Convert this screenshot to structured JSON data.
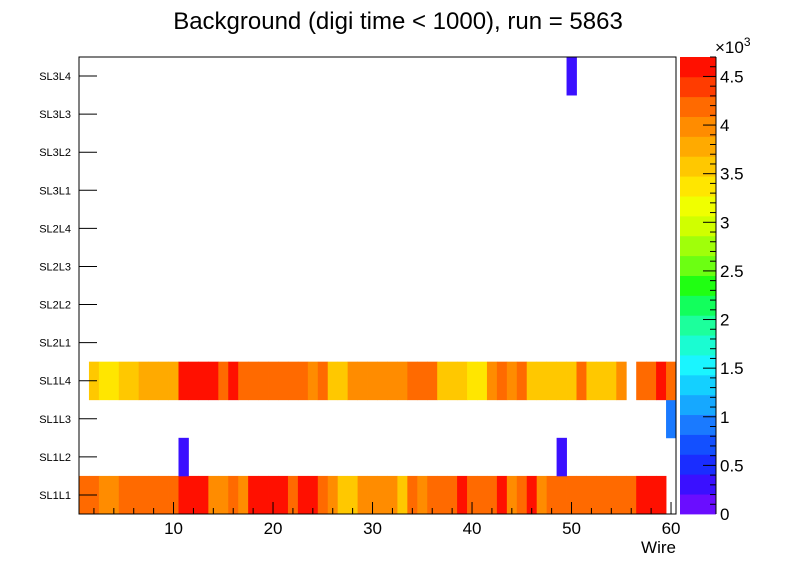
{
  "chart_data": {
    "type": "heatmap",
    "title": "Background (digi time < 1000), run = 5863",
    "xlabel": "Wire",
    "ylabel": "",
    "xlim": [
      0.5,
      60.5
    ],
    "x_ticks": [
      "10",
      "20",
      "30",
      "40",
      "50",
      "60"
    ],
    "y_categories": [
      "SL1L1",
      "SL1L2",
      "SL1L3",
      "SL1L4",
      "SL2L1",
      "SL2L2",
      "SL2L3",
      "SL2L4",
      "SL3L1",
      "SL3L2",
      "SL3L3",
      "SL3L4"
    ],
    "z_range": [
      0,
      4700
    ],
    "z_multiplier_label": "×10",
    "z_multiplier_exponent": "3",
    "z_ticks": [
      "0",
      "0.5",
      "1",
      "1.5",
      "2",
      "2.5",
      "3",
      "3.5",
      "4",
      "4.5"
    ],
    "z_tick_values": [
      0,
      500,
      1000,
      1500,
      2000,
      2500,
      3000,
      3500,
      4000,
      4500
    ],
    "palette": [
      "#6a0dff",
      "#3a10ff",
      "#1a2dff",
      "#1350ff",
      "#1a7aff",
      "#16a8ff",
      "#14d0ff",
      "#1af5ff",
      "#1afcd2",
      "#1cff9c",
      "#12ff5c",
      "#20ff12",
      "#6cff12",
      "#a0ff0a",
      "#d0ff00",
      "#f0ff00",
      "#ffe600",
      "#ffc800",
      "#ffaa00",
      "#ff8c00",
      "#ff6a00",
      "#ff3c00",
      "#ff1000"
    ],
    "series": [
      {
        "name": "SL1L1",
        "values": [
          4200,
          4200,
          4000,
          4000,
          4200,
          4200,
          4200,
          4200,
          4200,
          4200,
          4500,
          4500,
          4500,
          4000,
          3900,
          4200,
          4000,
          4500,
          4500,
          4500,
          4500,
          4200,
          4500,
          4500,
          4200,
          3900,
          3500,
          3500,
          3900,
          3900,
          3900,
          3900,
          3600,
          4200,
          3900,
          4200,
          4200,
          4200,
          4500,
          4200,
          4200,
          4200,
          4500,
          3900,
          4200,
          4500,
          3900,
          4200,
          4200,
          4200,
          4200,
          4200,
          4200,
          4200,
          4200,
          4200,
          4700,
          4700,
          4700,
          0
        ]
      },
      {
        "name": "SL1L2",
        "values": [
          0,
          0,
          0,
          0,
          0,
          0,
          0,
          0,
          0,
          0,
          350,
          0,
          0,
          0,
          0,
          0,
          0,
          0,
          0,
          0,
          0,
          0,
          0,
          0,
          0,
          0,
          0,
          0,
          0,
          0,
          0,
          0,
          0,
          0,
          0,
          0,
          0,
          0,
          0,
          0,
          0,
          0,
          0,
          0,
          0,
          0,
          0,
          0,
          350,
          0,
          0,
          0,
          0,
          0,
          0,
          0,
          0,
          0,
          0,
          0
        ]
      },
      {
        "name": "SL1L3",
        "values": [
          0,
          0,
          0,
          0,
          0,
          0,
          0,
          0,
          0,
          0,
          0,
          0,
          0,
          0,
          0,
          0,
          0,
          0,
          0,
          0,
          0,
          0,
          0,
          0,
          0,
          0,
          0,
          0,
          0,
          0,
          0,
          0,
          0,
          0,
          0,
          0,
          0,
          0,
          0,
          0,
          0,
          0,
          0,
          0,
          0,
          0,
          0,
          0,
          0,
          0,
          0,
          0,
          0,
          0,
          0,
          0,
          0,
          0,
          0,
          900
        ]
      },
      {
        "name": "SL1L4",
        "values": [
          0,
          3600,
          3300,
          3300,
          3600,
          3600,
          3800,
          3800,
          3800,
          3800,
          4500,
          4700,
          4700,
          4500,
          4200,
          4500,
          4200,
          4200,
          4200,
          4200,
          4200,
          4200,
          4200,
          3900,
          4200,
          3600,
          3600,
          3900,
          3900,
          3900,
          3900,
          3900,
          3900,
          4200,
          4200,
          4200,
          3600,
          3600,
          3600,
          3300,
          3300,
          3900,
          4200,
          3900,
          4200,
          3600,
          3600,
          3600,
          3600,
          3600,
          4200,
          3600,
          3600,
          3600,
          3900,
          0,
          4200,
          4200,
          4500,
          4200
        ]
      },
      {
        "name": "SL2L1",
        "values": [
          0,
          0,
          0,
          0,
          0,
          0,
          0,
          0,
          0,
          0,
          0,
          0,
          0,
          0,
          0,
          0,
          0,
          0,
          0,
          0,
          0,
          0,
          0,
          0,
          0,
          0,
          0,
          0,
          0,
          0,
          0,
          0,
          0,
          0,
          0,
          0,
          0,
          0,
          0,
          0,
          0,
          0,
          0,
          0,
          0,
          0,
          0,
          0,
          0,
          0,
          0,
          0,
          0,
          0,
          0,
          0,
          0,
          0,
          0,
          0
        ]
      },
      {
        "name": "SL2L2",
        "values": [
          0,
          0,
          0,
          0,
          0,
          0,
          0,
          0,
          0,
          0,
          0,
          0,
          0,
          0,
          0,
          0,
          0,
          0,
          0,
          0,
          0,
          0,
          0,
          0,
          0,
          0,
          0,
          0,
          0,
          0,
          0,
          0,
          0,
          0,
          0,
          0,
          0,
          0,
          0,
          0,
          0,
          0,
          0,
          0,
          0,
          0,
          0,
          0,
          0,
          0,
          0,
          0,
          0,
          0,
          0,
          0,
          0,
          0,
          0,
          0
        ]
      },
      {
        "name": "SL2L3",
        "values": [
          0,
          0,
          0,
          0,
          0,
          0,
          0,
          0,
          0,
          0,
          0,
          0,
          0,
          0,
          0,
          0,
          0,
          0,
          0,
          0,
          0,
          0,
          0,
          0,
          0,
          0,
          0,
          0,
          0,
          0,
          0,
          0,
          0,
          0,
          0,
          0,
          0,
          0,
          0,
          0,
          0,
          0,
          0,
          0,
          0,
          0,
          0,
          0,
          0,
          0,
          0,
          0,
          0,
          0,
          0,
          0,
          0,
          0,
          0,
          0
        ]
      },
      {
        "name": "SL2L4",
        "values": [
          0,
          0,
          0,
          0,
          0,
          0,
          0,
          0,
          0,
          0,
          0,
          0,
          0,
          0,
          0,
          0,
          0,
          0,
          0,
          0,
          0,
          0,
          0,
          0,
          0,
          0,
          0,
          0,
          0,
          0,
          0,
          0,
          0,
          0,
          0,
          0,
          0,
          0,
          0,
          0,
          0,
          0,
          0,
          0,
          0,
          0,
          0,
          0,
          0,
          0,
          0,
          0,
          0,
          0,
          0,
          0,
          0,
          0,
          0,
          0
        ]
      },
      {
        "name": "SL3L1",
        "values": [
          0,
          0,
          0,
          0,
          0,
          0,
          0,
          0,
          0,
          0,
          0,
          0,
          0,
          0,
          0,
          0,
          0,
          0,
          0,
          0,
          0,
          0,
          0,
          0,
          0,
          0,
          0,
          0,
          0,
          0,
          0,
          0,
          0,
          0,
          0,
          0,
          0,
          0,
          0,
          0,
          0,
          0,
          0,
          0,
          0,
          0,
          0,
          0,
          0,
          0,
          0,
          0,
          0,
          0,
          0,
          0,
          0,
          0,
          0,
          0
        ]
      },
      {
        "name": "SL3L2",
        "values": [
          0,
          0,
          0,
          0,
          0,
          0,
          0,
          0,
          0,
          0,
          0,
          0,
          0,
          0,
          0,
          0,
          0,
          0,
          0,
          0,
          0,
          0,
          0,
          0,
          0,
          0,
          0,
          0,
          0,
          0,
          0,
          0,
          0,
          0,
          0,
          0,
          0,
          0,
          0,
          0,
          0,
          0,
          0,
          0,
          0,
          0,
          0,
          0,
          0,
          0,
          0,
          0,
          0,
          0,
          0,
          0,
          0,
          0,
          0,
          0
        ]
      },
      {
        "name": "SL3L3",
        "values": [
          0,
          0,
          0,
          0,
          0,
          0,
          0,
          0,
          0,
          0,
          0,
          0,
          0,
          0,
          0,
          0,
          0,
          0,
          0,
          0,
          0,
          0,
          0,
          0,
          0,
          0,
          0,
          0,
          0,
          0,
          0,
          0,
          0,
          0,
          0,
          0,
          0,
          0,
          0,
          0,
          0,
          0,
          0,
          0,
          0,
          0,
          0,
          0,
          0,
          0,
          0,
          0,
          0,
          0,
          0,
          0,
          0,
          0,
          0,
          0
        ]
      },
      {
        "name": "SL3L4",
        "values": [
          0,
          0,
          0,
          0,
          0,
          0,
          0,
          0,
          0,
          0,
          0,
          0,
          0,
          0,
          0,
          0,
          0,
          0,
          0,
          0,
          0,
          0,
          0,
          0,
          0,
          0,
          0,
          0,
          0,
          0,
          0,
          0,
          0,
          0,
          0,
          0,
          0,
          0,
          0,
          0,
          0,
          0,
          0,
          0,
          0,
          0,
          0,
          0,
          0,
          350,
          0,
          0,
          0,
          0,
          0,
          0,
          0,
          0,
          0,
          0
        ]
      }
    ]
  }
}
